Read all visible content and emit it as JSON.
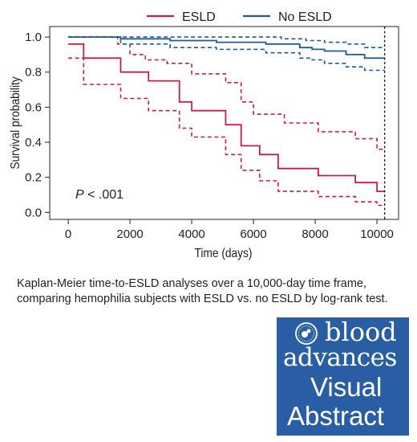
{
  "chart_data": {
    "type": "line",
    "step": true,
    "xlabel": "Time (days)",
    "ylabel": "Survival probability",
    "xlim": [
      -600,
      10700
    ],
    "ylim": [
      -0.04,
      1.06
    ],
    "xticks": [
      0,
      2000,
      4000,
      6000,
      8000,
      10000
    ],
    "yticks": [
      0.0,
      0.2,
      0.4,
      0.6,
      0.8,
      1.0
    ],
    "ytick_labels": [
      "0.0",
      "0.2",
      "0.4",
      "0.6",
      "0.8",
      "1.0"
    ],
    "legend_position": "top",
    "annotation": {
      "italic": "P",
      "rest": " < .001"
    },
    "reference_line_x": 10250,
    "series": [
      {
        "name": "ESLD",
        "color": "#c8203c",
        "points": [
          [
            0,
            0.96
          ],
          [
            500,
            0.88
          ],
          [
            1700,
            0.8
          ],
          [
            2600,
            0.75
          ],
          [
            3600,
            0.63
          ],
          [
            4000,
            0.58
          ],
          [
            5100,
            0.5
          ],
          [
            5600,
            0.38
          ],
          [
            6200,
            0.33
          ],
          [
            6800,
            0.25
          ],
          [
            8100,
            0.21
          ],
          [
            9300,
            0.17
          ],
          [
            10000,
            0.12
          ],
          [
            10250,
            0.12
          ]
        ],
        "ci_upper": [
          [
            0,
            1.0
          ],
          [
            1600,
            0.96
          ],
          [
            2000,
            0.9
          ],
          [
            2500,
            0.87
          ],
          [
            3200,
            0.85
          ],
          [
            4000,
            0.79
          ],
          [
            5100,
            0.74
          ],
          [
            5600,
            0.63
          ],
          [
            6000,
            0.56
          ],
          [
            7000,
            0.51
          ],
          [
            8100,
            0.46
          ],
          [
            9300,
            0.42
          ],
          [
            10000,
            0.36
          ],
          [
            10250,
            0.36
          ]
        ],
        "ci_lower": [
          [
            0,
            0.88
          ],
          [
            500,
            0.73
          ],
          [
            1700,
            0.65
          ],
          [
            2600,
            0.58
          ],
          [
            3600,
            0.48
          ],
          [
            4000,
            0.43
          ],
          [
            5100,
            0.33
          ],
          [
            5600,
            0.24
          ],
          [
            6200,
            0.18
          ],
          [
            6800,
            0.12
          ],
          [
            8100,
            0.09
          ],
          [
            9300,
            0.06
          ],
          [
            10000,
            0.04
          ],
          [
            10250,
            0.04
          ]
        ]
      },
      {
        "name": "No ESLD",
        "color": "#1f5a96",
        "points": [
          [
            0,
            1.0
          ],
          [
            1700,
            0.99
          ],
          [
            3300,
            0.98
          ],
          [
            4800,
            0.97
          ],
          [
            6400,
            0.96
          ],
          [
            7500,
            0.94
          ],
          [
            7900,
            0.93
          ],
          [
            8300,
            0.92
          ],
          [
            9000,
            0.9
          ],
          [
            9600,
            0.88
          ],
          [
            10250,
            0.88
          ]
        ],
        "ci_upper": [
          [
            0,
            1.0
          ],
          [
            1700,
            1.0
          ],
          [
            6900,
            0.99
          ],
          [
            7700,
            0.98
          ],
          [
            8300,
            0.97
          ],
          [
            9000,
            0.96
          ],
          [
            9600,
            0.94
          ],
          [
            10250,
            0.94
          ]
        ],
        "ci_lower": [
          [
            0,
            1.0
          ],
          [
            1700,
            0.96
          ],
          [
            3300,
            0.94
          ],
          [
            4800,
            0.93
          ],
          [
            6400,
            0.91
          ],
          [
            7500,
            0.88
          ],
          [
            7900,
            0.87
          ],
          [
            8300,
            0.85
          ],
          [
            9000,
            0.83
          ],
          [
            9600,
            0.81
          ],
          [
            10250,
            0.81
          ]
        ]
      }
    ]
  },
  "caption_lines": [
    "Kaplan-Meier time-to-ESLD analyses over a 10,000-day time frame,",
    "comparing hemophilia subjects with ESLD vs. no ESLD by log-rank test."
  ],
  "badge": {
    "line1": "blood",
    "line2": "advances",
    "line3": "Visual",
    "line4": "Abstract",
    "background": "#2a5ea4",
    "icon": "society-seal-icon"
  }
}
